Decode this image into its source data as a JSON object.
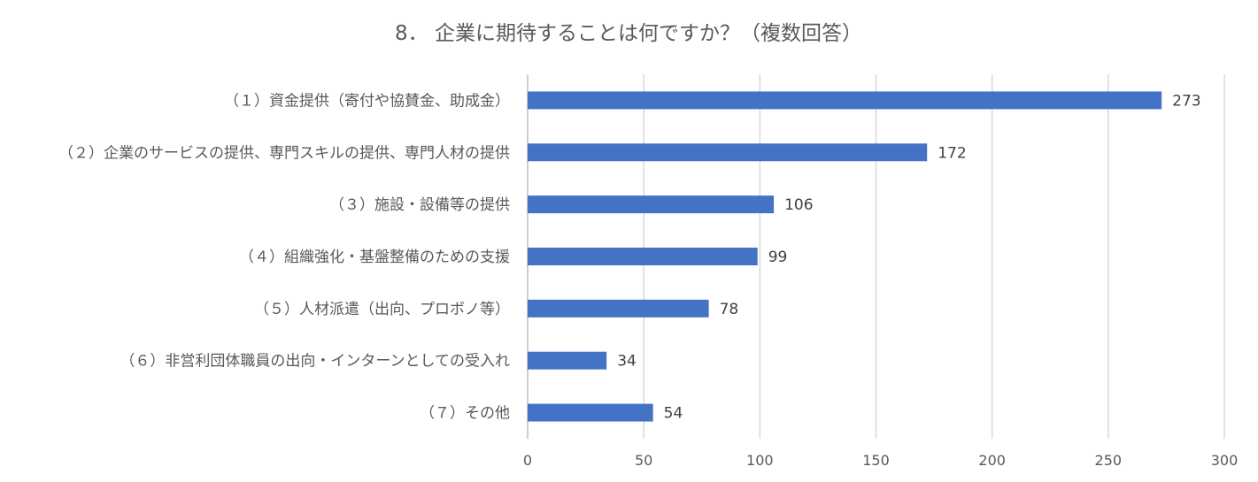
{
  "chart_data": {
    "type": "bar",
    "orientation": "horizontal",
    "title": "8． 企業に期待することは何ですか？（複数回答）",
    "categories": [
      "（１）資金提供（寄付や協賛金、助成金）",
      "（２）企業のサービスの提供、専門スキルの提供、専門人材の提供",
      "（３）施設・設備等の提供",
      "（４）組織強化・基盤整備のための支援",
      "（５）人材派遣（出向、プロボノ等）",
      "（６）非営利団体職員の出向・インターンとしての受入れ",
      "（７）その他"
    ],
    "values": [
      273,
      172,
      106,
      99,
      78,
      34,
      54
    ],
    "value_labels": [
      "273",
      "172",
      "106",
      "99",
      "78",
      "34",
      "54"
    ],
    "xlim": [
      0,
      300
    ],
    "xticks": [
      "0",
      "50",
      "100",
      "150",
      "200",
      "250",
      "300"
    ],
    "bar_color": "#4472c4",
    "grid": true,
    "legend": "none"
  }
}
